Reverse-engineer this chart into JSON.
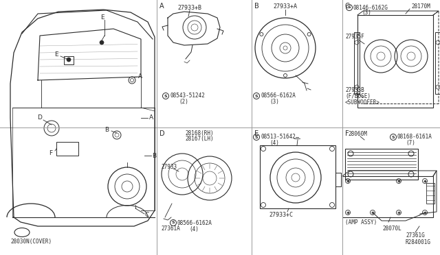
{
  "bg_color": "#f5f5f0",
  "line_color": "#2a2a2a",
  "grid_line_color": "#999999",
  "figsize": [
    6.4,
    3.72
  ],
  "dpi": 100,
  "cover_label": "28030N(COVER)",
  "panel_labels": [
    "A",
    "B",
    "C",
    "D",
    "E",
    "F"
  ],
  "panel_A": {
    "part_num": "27933+B",
    "screw": "S 08543-51242",
    "qty": "(2)"
  },
  "panel_B": {
    "part_num": "27933+A",
    "screw": "S 08566-6162A",
    "qty": "(3)"
  },
  "panel_C": {
    "screw": "S 08146-6162G",
    "qty": "(3)",
    "p1": "28170M",
    "p2": "27935F",
    "p3": "27933B",
    "note": "(F/BOSE)",
    "caption": "<SUBWOOFER>"
  },
  "panel_D": {
    "p1": "28168(RH)",
    "p2": "28167(LH)",
    "p3": "27933",
    "screw": "S 08566-6162A",
    "p4": "27361A",
    "qty": "(4)"
  },
  "panel_E": {
    "screw": "S 08513-51642",
    "qty": "(4)",
    "part_num": "27933+C"
  },
  "panel_F": {
    "p1": "28060M",
    "screw": "S 08168-6161A",
    "qty": "(7)",
    "caption": "(AMP ASSY)",
    "p2": "28070L",
    "p3": "27361G",
    "p4": "R284001G"
  }
}
